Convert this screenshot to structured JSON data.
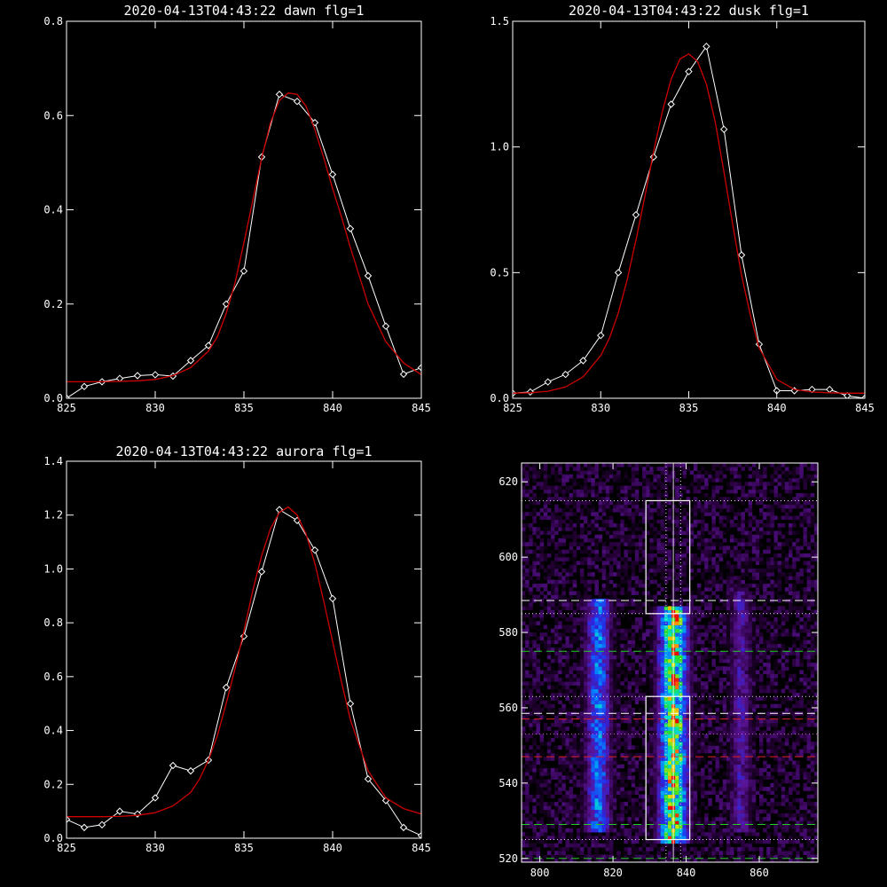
{
  "colors": {
    "background": "#000000",
    "axes": "#ffffff",
    "data_line": "#ffffff",
    "fit_line": "#cc0000",
    "green_dash": "#22cc22",
    "red_dash": "#dd2222",
    "white_dash": "#ffffff",
    "dotted": "#dddddd",
    "purple_dotted": "#cc66cc"
  },
  "chart_data": [
    {
      "id": "dawn",
      "type": "line",
      "title": "2020-04-13T04:43:22 dawn flg=1",
      "xlim": [
        825,
        845
      ],
      "ylim": [
        0,
        0.8
      ],
      "xticks": [
        825,
        830,
        835,
        840,
        845
      ],
      "yticks": [
        0.0,
        0.2,
        0.4,
        0.6,
        0.8
      ],
      "ytick_labels": [
        "0.0",
        "0.2",
        "0.4",
        "0.6",
        "0.8"
      ],
      "series": [
        {
          "kind": "data",
          "marker": "diamond",
          "x": [
            825,
            826,
            827,
            828,
            829,
            830,
            831,
            832,
            833,
            834,
            835,
            836,
            837,
            838,
            839,
            840,
            841,
            842,
            843,
            844,
            845
          ],
          "y": [
            0.0,
            0.025,
            0.035,
            0.042,
            0.048,
            0.05,
            0.047,
            0.08,
            0.112,
            0.2,
            0.27,
            0.512,
            0.645,
            0.63,
            0.585,
            0.475,
            0.36,
            0.26,
            0.153,
            0.051,
            0.065
          ]
        },
        {
          "kind": "fit",
          "x": [
            825,
            826,
            827,
            828,
            829,
            830,
            831,
            832,
            833,
            833.5,
            834,
            834.5,
            835,
            835.5,
            836,
            836.5,
            837,
            837.5,
            838,
            838.5,
            839,
            839.5,
            840,
            840.5,
            841,
            842,
            843,
            844,
            845
          ],
          "y": [
            0.035,
            0.035,
            0.035,
            0.036,
            0.037,
            0.04,
            0.048,
            0.065,
            0.1,
            0.13,
            0.18,
            0.245,
            0.33,
            0.42,
            0.51,
            0.585,
            0.632,
            0.648,
            0.645,
            0.62,
            0.57,
            0.51,
            0.445,
            0.385,
            0.32,
            0.2,
            0.12,
            0.075,
            0.05
          ]
        }
      ]
    },
    {
      "id": "dusk",
      "type": "line",
      "title": "2020-04-13T04:43:22 dusk flg=1",
      "xlim": [
        825,
        845
      ],
      "ylim": [
        0,
        1.5
      ],
      "xticks": [
        825,
        830,
        835,
        840,
        845
      ],
      "yticks": [
        0.0,
        0.5,
        1.0,
        1.5
      ],
      "ytick_labels": [
        "0.0",
        "0.5",
        "1.0",
        "1.5"
      ],
      "series": [
        {
          "kind": "data",
          "marker": "diamond",
          "x": [
            825,
            826,
            827,
            828,
            829,
            830,
            831,
            832,
            833,
            834,
            835,
            836,
            837,
            838,
            839,
            840,
            841,
            842,
            843,
            844,
            845
          ],
          "y": [
            0.02,
            0.025,
            0.065,
            0.095,
            0.15,
            0.25,
            0.5,
            0.73,
            0.96,
            1.17,
            1.3,
            1.4,
            1.07,
            0.57,
            0.215,
            0.03,
            0.03,
            0.035,
            0.035,
            0.01,
            0.0
          ]
        },
        {
          "kind": "fit",
          "x": [
            825,
            826,
            827,
            828,
            829,
            830,
            830.5,
            831,
            831.5,
            832,
            832.5,
            833,
            833.5,
            834,
            834.5,
            835,
            835.5,
            836,
            836.5,
            837,
            837.5,
            838,
            838.5,
            839,
            840,
            841,
            842,
            843,
            844,
            845
          ],
          "y": [
            0.02,
            0.022,
            0.028,
            0.045,
            0.085,
            0.17,
            0.24,
            0.34,
            0.47,
            0.63,
            0.8,
            0.98,
            1.14,
            1.27,
            1.35,
            1.37,
            1.34,
            1.25,
            1.1,
            0.9,
            0.69,
            0.49,
            0.33,
            0.2,
            0.075,
            0.035,
            0.025,
            0.022,
            0.02,
            0.02
          ]
        }
      ]
    },
    {
      "id": "aurora",
      "type": "line",
      "title": "2020-04-13T04:43:22 aurora flg=1",
      "xlim": [
        825,
        845
      ],
      "ylim": [
        0,
        1.4
      ],
      "xticks": [
        825,
        830,
        835,
        840,
        845
      ],
      "yticks": [
        0.0,
        0.2,
        0.4,
        0.6,
        0.8,
        1.0,
        1.2,
        1.4
      ],
      "ytick_labels": [
        "0.0",
        "0.2",
        "0.4",
        "0.6",
        "0.8",
        "1.0",
        "1.2",
        "1.4"
      ],
      "series": [
        {
          "kind": "data",
          "marker": "diamond",
          "x": [
            825,
            826,
            827,
            828,
            829,
            830,
            831,
            832,
            833,
            834,
            835,
            836,
            837,
            838,
            839,
            840,
            841,
            842,
            843,
            844,
            845
          ],
          "y": [
            0.07,
            0.04,
            0.05,
            0.1,
            0.09,
            0.15,
            0.27,
            0.25,
            0.29,
            0.56,
            0.75,
            0.99,
            1.22,
            1.18,
            1.07,
            0.89,
            0.5,
            0.22,
            0.14,
            0.04,
            0.01
          ]
        },
        {
          "kind": "fit",
          "x": [
            825,
            826,
            827,
            828,
            829,
            830,
            831,
            832,
            832.5,
            833,
            833.5,
            834,
            834.5,
            835,
            835.5,
            836,
            836.5,
            837,
            837.5,
            838,
            838.5,
            839,
            839.5,
            840,
            840.5,
            841,
            842,
            843,
            844,
            845
          ],
          "y": [
            0.08,
            0.08,
            0.08,
            0.081,
            0.085,
            0.095,
            0.12,
            0.17,
            0.22,
            0.29,
            0.38,
            0.5,
            0.63,
            0.77,
            0.92,
            1.05,
            1.15,
            1.21,
            1.23,
            1.2,
            1.13,
            1.02,
            0.88,
            0.73,
            0.58,
            0.44,
            0.25,
            0.15,
            0.11,
            0.09
          ]
        }
      ]
    },
    {
      "id": "image",
      "type": "heatmap",
      "title": "",
      "xlim": [
        795,
        876
      ],
      "ylim": [
        519,
        625
      ],
      "xticks": [
        800,
        820,
        840,
        860
      ],
      "yticks": [
        520,
        540,
        560,
        580,
        600,
        620
      ],
      "colormap": "rainbow (black-purple-blue-cyan-green-yellow-red)",
      "emission_bands": [
        {
          "center_x": 816,
          "half_width": 3.5,
          "y_range": [
            527,
            588
          ],
          "peak_intensity": 0.55
        },
        {
          "center_x": 836.5,
          "half_width": 4.0,
          "y_range": [
            524,
            586
          ],
          "peak_intensity": 1.0
        },
        {
          "center_x": 855,
          "half_width": 3.0,
          "y_range": [
            527,
            590
          ],
          "peak_intensity": 0.3
        }
      ],
      "boxes": [
        {
          "x": [
            829,
            841
          ],
          "y": [
            585,
            615
          ]
        },
        {
          "x": [
            829,
            841
          ],
          "y": [
            525,
            563
          ]
        }
      ],
      "hlines": [
        {
          "y": 615,
          "style": "dotted",
          "color": "dotted"
        },
        {
          "y": 588.5,
          "style": "dashed",
          "color": "white_dash"
        },
        {
          "y": 585,
          "style": "dotted",
          "color": "dotted"
        },
        {
          "y": 575,
          "style": "dashed",
          "color": "green_dash"
        },
        {
          "y": 563,
          "style": "dotted",
          "color": "dotted"
        },
        {
          "y": 558.5,
          "style": "dashed",
          "color": "white_dash"
        },
        {
          "y": 557,
          "style": "dashed",
          "color": "red_dash"
        },
        {
          "y": 553,
          "style": "dotted",
          "color": "purple_dotted"
        },
        {
          "y": 547,
          "style": "dashed",
          "color": "red_dash"
        },
        {
          "y": 529,
          "style": "dashed",
          "color": "green_dash"
        },
        {
          "y": 525,
          "style": "dotted",
          "color": "dotted"
        },
        {
          "y": 520,
          "style": "dashed",
          "color": "green_dash"
        }
      ],
      "vlines": [
        {
          "x": 834.5,
          "style": "dotted",
          "color": "dotted"
        },
        {
          "x": 836.5,
          "style": "solid",
          "color": "white_dash"
        },
        {
          "x": 838.5,
          "style": "dotted",
          "color": "dotted"
        }
      ]
    }
  ]
}
